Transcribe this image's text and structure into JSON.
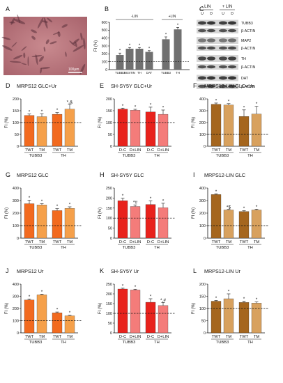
{
  "figure": {
    "panel_A": {
      "letter": "A",
      "scale_text": "100µm"
    },
    "panel_B": {
      "letter": "B",
      "group_labels": [
        "-LIN",
        "+LIN"
      ],
      "ylabel": "FI (%)",
      "ylim": [
        0,
        600
      ],
      "yticks": [
        0,
        100,
        200,
        300,
        400,
        500,
        600
      ],
      "categories": [
        "TUBB3",
        "NESTIN",
        "TH",
        "DAT",
        "TUBB3",
        "TH"
      ],
      "values": [
        185,
        265,
        265,
        225,
        385,
        510
      ],
      "errors": [
        25,
        15,
        15,
        15,
        30,
        25
      ],
      "colors": [
        "#707070",
        "#707070",
        "#707070",
        "#707070",
        "#707070",
        "#707070"
      ],
      "markers": [
        "*",
        "*",
        "*",
        "*",
        "*",
        "*"
      ],
      "reference_line": 100
    },
    "panel_C": {
      "letter": "C",
      "group_labels": [
        "- LIN",
        "+ LIN"
      ],
      "lane_labels": [
        "U",
        "D",
        "U",
        "D"
      ],
      "row_labels": [
        "TUBB3",
        "β-ACTIN",
        "MAP2",
        "β-ACTIN",
        "TH",
        "β-ACTIN",
        "DAT",
        "β-ACTIN"
      ]
    },
    "panels": [
      {
        "letter": "D",
        "title": "MRPS12 GLC+Ur",
        "ylabel": "FI (%)",
        "ylim": [
          0,
          200
        ],
        "yticks": [
          0,
          50,
          100,
          150,
          200
        ],
        "bars": [
          "TWT",
          "TM",
          "TWT",
          "TM"
        ],
        "groups": [
          "TUBB3",
          "TH"
        ],
        "values": [
          130,
          125,
          135,
          157
        ],
        "errors": [
          6,
          12,
          7,
          20
        ],
        "markers": [
          "*",
          "*",
          "*",
          "*,&"
        ],
        "colors": [
          "#F26A1F",
          "#F5A04A",
          "#F26A1F",
          "#F5A04A"
        ],
        "reference_line": 100
      },
      {
        "letter": "E",
        "title": "SH-SY5Y GLC+Ur",
        "ylabel": "FI (%)",
        "ylim": [
          0,
          200
        ],
        "yticks": [
          0,
          50,
          100,
          150,
          200
        ],
        "bars": [
          "D-C",
          "D+LIN",
          "D-C",
          "D+LIN"
        ],
        "groups": [
          "TUBB3",
          "TH"
        ],
        "values": [
          157,
          152,
          145,
          135
        ],
        "errors": [
          4,
          4,
          20,
          18
        ],
        "markers": [
          "*",
          "*",
          "*",
          "*"
        ],
        "colors": [
          "#E8221C",
          "#F47C7A",
          "#E8221C",
          "#F47C7A"
        ],
        "reference_line": 100
      },
      {
        "letter": "F",
        "title": "MRPS12-LIN GLC+Ur",
        "ylabel": "FI (%)",
        "ylim": [
          0,
          400
        ],
        "yticks": [
          0,
          100,
          200,
          300,
          400
        ],
        "bars": [
          "TWT",
          "TM",
          "TWT",
          "TM"
        ],
        "groups": [
          "TUBB3",
          "TH"
        ],
        "values": [
          355,
          348,
          252,
          272
        ],
        "errors": [
          10,
          12,
          55,
          65
        ],
        "markers": [
          "*",
          "*",
          "*",
          "*"
        ],
        "colors": [
          "#A5661E",
          "#D8A15E",
          "#A5661E",
          "#D8A15E"
        ],
        "reference_line": 100
      },
      {
        "letter": "G",
        "title": "MRPS12 GLC",
        "ylabel": "FI (%)",
        "ylim": [
          0,
          400
        ],
        "yticks": [
          0,
          100,
          200,
          300,
          400
        ],
        "bars": [
          "TWT",
          "TM",
          "TWT",
          "TM"
        ],
        "groups": [
          "TUBB3",
          "TH"
        ],
        "values": [
          275,
          265,
          220,
          238
        ],
        "errors": [
          28,
          10,
          15,
          12
        ],
        "markers": [
          "*",
          "*",
          "*",
          "*"
        ],
        "colors": [
          "#F26A1F",
          "#F5A04A",
          "#F26A1F",
          "#F5A04A"
        ],
        "reference_line": 100
      },
      {
        "letter": "H",
        "title": "SH-SY5Y GLC",
        "ylabel": "FI (%)",
        "ylim": [
          0,
          250
        ],
        "yticks": [
          0,
          50,
          100,
          150,
          200,
          250
        ],
        "bars": [
          "D-C",
          "D+LIN",
          "D-C",
          "D+LIN"
        ],
        "groups": [
          "TUBB3",
          "TH"
        ],
        "values": [
          187,
          158,
          168,
          152
        ],
        "errors": [
          12,
          8,
          18,
          22
        ],
        "markers": [
          "*",
          "*#",
          "*",
          "*"
        ],
        "colors": [
          "#E8221C",
          "#F47C7A",
          "#E8221C",
          "#F47C7A"
        ],
        "reference_line": 100
      },
      {
        "letter": "I",
        "title": "MRPS12-LIN GLC",
        "ylabel": "FI (%)",
        "ylim": [
          0,
          400
        ],
        "yticks": [
          0,
          100,
          200,
          300,
          400
        ],
        "bars": [
          "TWT",
          "TM",
          "TWT",
          "TM"
        ],
        "groups": [
          "TUBB3",
          "TH"
        ],
        "values": [
          348,
          225,
          213,
          225
        ],
        "errors": [
          6,
          4,
          6,
          6
        ],
        "markers": [
          "*",
          "*$",
          "*",
          "*"
        ],
        "colors": [
          "#A5661E",
          "#D8A15E",
          "#A5661E",
          "#D8A15E"
        ],
        "reference_line": 100
      },
      {
        "letter": "J",
        "title": "MRPS12 Ur",
        "ylabel": "FI (%)",
        "ylim": [
          0,
          400
        ],
        "yticks": [
          0,
          100,
          200,
          300,
          400
        ],
        "bars": [
          "TWT",
          "TM",
          "TWT",
          "TM"
        ],
        "groups": [
          "TUBB3",
          "TH"
        ],
        "values": [
          270,
          312,
          165,
          140
        ],
        "errors": [
          8,
          6,
          6,
          5
        ],
        "markers": [
          "*",
          "*",
          "*",
          "*"
        ],
        "colors": [
          "#F26A1F",
          "#F5A04A",
          "#F26A1F",
          "#F5A04A"
        ],
        "reference_line": 100
      },
      {
        "letter": "K",
        "title": "SH-SY5Y Ur",
        "ylabel": "FI (%)",
        "ylim": [
          0,
          250
        ],
        "yticks": [
          0,
          50,
          100,
          150,
          200,
          250
        ],
        "bars": [
          "D-C",
          "D+LIN",
          "D-C",
          "D+LIN"
        ],
        "groups": [
          "TUBB3",
          "TH"
        ],
        "values": [
          225,
          220,
          157,
          140
        ],
        "errors": [
          4,
          4,
          18,
          16
        ],
        "markers": [
          "*",
          "*",
          "*",
          "*,#"
        ],
        "colors": [
          "#E8221C",
          "#F47C7A",
          "#E8221C",
          "#F47C7A"
        ],
        "reference_line": 100
      },
      {
        "letter": "L",
        "title": "MRPS12-LIN Ur",
        "ylabel": "FI (%)",
        "ylim": [
          0,
          200
        ],
        "yticks": [
          0,
          50,
          100,
          150,
          200
        ],
        "bars": [
          "TWT",
          "TM",
          "TWT",
          "TM"
        ],
        "groups": [
          "TUBB3",
          "TH"
        ],
        "values": [
          130,
          140,
          125,
          122
        ],
        "errors": [
          3,
          20,
          5,
          5
        ],
        "markers": [
          "*",
          "*",
          "*",
          "*"
        ],
        "colors": [
          "#A5661E",
          "#D8A15E",
          "#A5661E",
          "#D8A15E"
        ],
        "reference_line": 100
      }
    ]
  },
  "chart_data": [
    {
      "type": "bar",
      "title": "",
      "ylabel": "FI (%)",
      "ylim": [
        0,
        600
      ],
      "categories": [
        "TUBB3",
        "NESTIN",
        "TH",
        "DAT",
        "TUBB3",
        "TH"
      ],
      "values": [
        185,
        265,
        265,
        225,
        385,
        510
      ],
      "group_labels": [
        "-LIN",
        "+LIN"
      ]
    },
    {
      "type": "bar",
      "title": "MRPS12 GLC+Ur",
      "ylabel": "FI (%)",
      "ylim": [
        0,
        200
      ],
      "categories": [
        "TWT",
        "TM",
        "TWT",
        "TM"
      ],
      "values": [
        130,
        125,
        135,
        157
      ]
    },
    {
      "type": "bar",
      "title": "SH-SY5Y GLC+Ur",
      "ylabel": "FI (%)",
      "ylim": [
        0,
        200
      ],
      "categories": [
        "D-C",
        "D+LIN",
        "D-C",
        "D+LIN"
      ],
      "values": [
        157,
        152,
        145,
        135
      ]
    },
    {
      "type": "bar",
      "title": "MRPS12-LIN GLC+Ur",
      "ylabel": "FI (%)",
      "ylim": [
        0,
        400
      ],
      "categories": [
        "TWT",
        "TM",
        "TWT",
        "TM"
      ],
      "values": [
        355,
        348,
        252,
        272
      ]
    },
    {
      "type": "bar",
      "title": "MRPS12 GLC",
      "ylabel": "FI (%)",
      "ylim": [
        0,
        400
      ],
      "categories": [
        "TWT",
        "TM",
        "TWT",
        "TM"
      ],
      "values": [
        275,
        265,
        220,
        238
      ]
    },
    {
      "type": "bar",
      "title": "SH-SY5Y GLC",
      "ylabel": "FI (%)",
      "ylim": [
        0,
        250
      ],
      "categories": [
        "D-C",
        "D+LIN",
        "D-C",
        "D+LIN"
      ],
      "values": [
        187,
        158,
        168,
        152
      ]
    },
    {
      "type": "bar",
      "title": "MRPS12-LIN GLC",
      "ylabel": "FI (%)",
      "ylim": [
        0,
        400
      ],
      "categories": [
        "TWT",
        "TM",
        "TWT",
        "TM"
      ],
      "values": [
        348,
        225,
        213,
        225
      ]
    },
    {
      "type": "bar",
      "title": "MRPS12 Ur",
      "ylabel": "FI (%)",
      "ylim": [
        0,
        400
      ],
      "categories": [
        "TWT",
        "TM",
        "TWT",
        "TM"
      ],
      "values": [
        270,
        312,
        165,
        140
      ]
    },
    {
      "type": "bar",
      "title": "SH-SY5Y Ur",
      "ylabel": "FI (%)",
      "ylim": [
        0,
        250
      ],
      "categories": [
        "D-C",
        "D+LIN",
        "D-C",
        "D+LIN"
      ],
      "values": [
        225,
        220,
        157,
        140
      ]
    },
    {
      "type": "bar",
      "title": "MRPS12-LIN Ur",
      "ylabel": "FI (%)",
      "ylim": [
        0,
        200
      ],
      "categories": [
        "TWT",
        "TM",
        "TWT",
        "TM"
      ],
      "values": [
        130,
        140,
        125,
        122
      ]
    }
  ]
}
